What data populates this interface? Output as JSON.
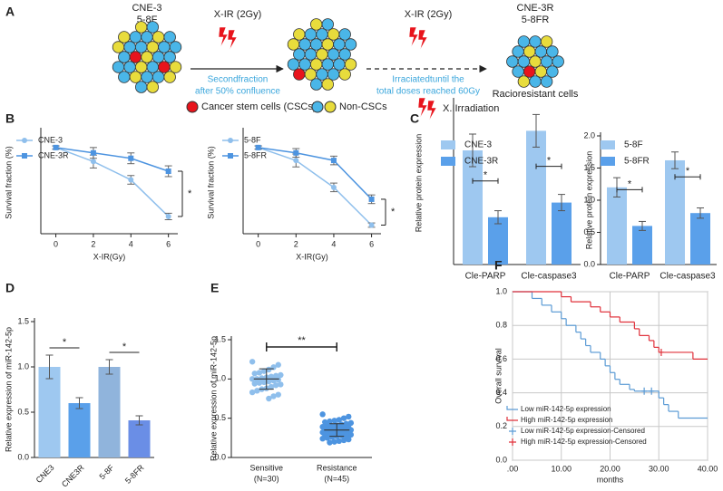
{
  "diagram": {
    "panel": "A",
    "start": [
      "CNE-3",
      "5-8F"
    ],
    "arrows": [
      {
        "label": "X-IR (2Gy)",
        "text": [
          "Secondfraction",
          "after 50% confluence"
        ]
      },
      {
        "label": "X-IR (2Gy)",
        "text": [
          "Irraciatedtuntil the",
          "total doses reached 60Gy"
        ]
      }
    ],
    "end": [
      "CNE-3R",
      "5-8FR"
    ],
    "caption": "Racioresistant cells",
    "legend": [
      "Cancer stem cells (CSCs)",
      "Non-CSCs",
      "X.IIrradiation"
    ]
  },
  "chart_data": [
    {
      "type": "line",
      "panel": "B",
      "ylabel": "Survival fraction (%)",
      "xlabel": "X-IR(Gy)",
      "x": [
        0,
        2,
        4,
        6
      ],
      "xlim": [
        -0.8,
        6.5
      ],
      "ylim": [
        20,
        115
      ],
      "xticks": [
        0,
        2,
        4,
        6
      ],
      "series": [
        {
          "name": "CNE-3",
          "color": "#8fbfec",
          "values": [
            100,
            87,
            70,
            36
          ],
          "errors": [
            1.5,
            6,
            4,
            3
          ]
        },
        {
          "name": "CNE-3R",
          "color": "#4d94e0",
          "values": [
            100,
            95,
            90,
            78
          ],
          "errors": [
            1.5,
            5,
            5,
            5
          ]
        }
      ],
      "annotations": [
        "*"
      ]
    },
    {
      "type": "line",
      "ylabel": "Survival fraction (%)",
      "xlabel": "X-IR(Gy)",
      "x": [
        0,
        2,
        4,
        6
      ],
      "xlim": [
        -0.8,
        6.5
      ],
      "ylim": [
        20,
        115
      ],
      "xticks": [
        0,
        2,
        4,
        6
      ],
      "series": [
        {
          "name": "5-8F",
          "color": "#8fbfec",
          "values": [
            100,
            88,
            63,
            28
          ],
          "errors": [
            1.5,
            6,
            4,
            2
          ]
        },
        {
          "name": "5-8FR",
          "color": "#4d94e0",
          "values": [
            100,
            95,
            88,
            52
          ],
          "errors": [
            1.5,
            4,
            4,
            4
          ]
        }
      ],
      "annotations": [
        "*"
      ]
    },
    {
      "type": "bar",
      "panel": "C",
      "ylabel": "Relative protein expression",
      "categories": [
        "Cle-PARP",
        "Cle-caspase3"
      ],
      "ylim": [
        0,
        1.0
      ],
      "series": [
        {
          "name": "CNE-3",
          "color": "#9ec8f0",
          "values": [
            0.7,
            0.82
          ],
          "errors": [
            0.1,
            0.1
          ]
        },
        {
          "name": "CNE-3R",
          "color": "#5aa0ea",
          "values": [
            0.29,
            0.38
          ],
          "errors": [
            0.04,
            0.05
          ]
        }
      ],
      "annotations": [
        "*",
        "*"
      ]
    },
    {
      "type": "bar",
      "ylabel": "Relative protein expression",
      "categories": [
        "Cle-PARP",
        "Cle-caspase3"
      ],
      "ylim": [
        0,
        2.0
      ],
      "yticks": [
        {
          "value": 0,
          "label": "0.0"
        },
        {
          "value": 0.5,
          "label": "0.5"
        },
        {
          "value": 1,
          "label": "1.0"
        },
        {
          "value": 1.5,
          "label": "1.5"
        },
        {
          "value": 2,
          "label": "2.0"
        }
      ],
      "series": [
        {
          "name": "5-8F",
          "color": "#9ec8f0",
          "values": [
            1.2,
            1.62
          ],
          "errors": [
            0.15,
            0.13
          ]
        },
        {
          "name": "5-8FR",
          "color": "#5aa0ea",
          "values": [
            0.6,
            0.8
          ],
          "errors": [
            0.07,
            0.08
          ]
        }
      ],
      "annotations": [
        "*",
        "*"
      ]
    },
    {
      "type": "column",
      "panel": "D",
      "ylabel": "Relative expression of miR-142-5p",
      "categories": [
        "CNE3",
        "CNE3R",
        "5-8F",
        "5-8FR"
      ],
      "values": [
        1.0,
        0.6,
        1.0,
        0.41
      ],
      "errors": [
        0.13,
        0.06,
        0.08,
        0.05
      ],
      "colors": [
        "#9ec8f0",
        "#5aa0ea",
        "#90b4dc",
        "#6a8ee6"
      ],
      "ylim": [
        0,
        1.5
      ],
      "yticks": [
        {
          "value": 0,
          "label": "0.0"
        },
        {
          "value": 0.5,
          "label": "0.5"
        },
        {
          "value": 1,
          "label": "1.0"
        },
        {
          "value": 1.5,
          "label": "1.5"
        }
      ],
      "annotations": [
        "*",
        "*"
      ]
    },
    {
      "type": "strip",
      "panel": "E",
      "ylabel": "Relative expression of miR-142-5p",
      "categories": [
        "Sensitive",
        "Resistance"
      ],
      "category_notes": [
        "(N=30)",
        "(N=45)"
      ],
      "groups": [
        {
          "color": "#8fbfec",
          "mean": 1.0,
          "sd": 0.13,
          "values": [
            1.22,
            1.18,
            1.15,
            1.12,
            1.1,
            1.08,
            1.07,
            1.05,
            1.04,
            1.03,
            1.02,
            1.01,
            1.0,
            1.0,
            0.99,
            0.98,
            0.97,
            0.96,
            0.95,
            0.94,
            0.93,
            0.92,
            0.9,
            0.88,
            0.87,
            0.85,
            0.83,
            0.8,
            0.78,
            0.75
          ]
        },
        {
          "color": "#4d94e0",
          "mean": 0.35,
          "sd": 0.08,
          "values": [
            0.55,
            0.52,
            0.5,
            0.48,
            0.47,
            0.46,
            0.45,
            0.44,
            0.43,
            0.42,
            0.41,
            0.4,
            0.4,
            0.39,
            0.38,
            0.38,
            0.37,
            0.37,
            0.36,
            0.36,
            0.35,
            0.35,
            0.34,
            0.34,
            0.33,
            0.33,
            0.32,
            0.32,
            0.31,
            0.31,
            0.3,
            0.3,
            0.29,
            0.29,
            0.28,
            0.28,
            0.27,
            0.26,
            0.25,
            0.24,
            0.23,
            0.22,
            0.21,
            0.2,
            0.19
          ]
        }
      ],
      "ylim": [
        0,
        1.5
      ],
      "yticks": [
        {
          "value": 0,
          "label": "0.0"
        },
        {
          "value": 0.5,
          "label": "0.5"
        },
        {
          "value": 1,
          "label": "1.0"
        },
        {
          "value": 1.5,
          "label": "1.5"
        }
      ],
      "annotations": [
        "**"
      ]
    },
    {
      "type": "survival",
      "panel": "F",
      "ylabel": "Overall survival",
      "xlabel": "months",
      "xlim": [
        0,
        40
      ],
      "ylim": [
        0,
        1.0
      ],
      "grid": true,
      "xticks": [
        {
          "value": 0,
          "label": ".00"
        },
        {
          "value": 10,
          "label": "10.00"
        },
        {
          "value": 20,
          "label": "20.00"
        },
        {
          "value": 30,
          "label": "30.00"
        },
        {
          "value": 40,
          "label": "40.00"
        }
      ],
      "yticks": [
        {
          "value": 0,
          "label": "0.0"
        },
        {
          "value": 0.2,
          "label": "0.2"
        },
        {
          "value": 0.4,
          "label": "0.4"
        },
        {
          "value": 0.6,
          "label": "0.6"
        },
        {
          "value": 0.8,
          "label": "0.8"
        },
        {
          "value": 1,
          "label": "1.0"
        }
      ],
      "series": [
        {
          "name": "Low miR-142-5p expression",
          "color": "#5b9bd5",
          "x": [
            0,
            4,
            6,
            8,
            10,
            11,
            13,
            14,
            15,
            16,
            18,
            19,
            20,
            21,
            22,
            24,
            25,
            30,
            31,
            32,
            34,
            40
          ],
          "values": [
            1.0,
            0.96,
            0.92,
            0.88,
            0.84,
            0.8,
            0.76,
            0.72,
            0.68,
            0.64,
            0.6,
            0.56,
            0.52,
            0.48,
            0.45,
            0.42,
            0.41,
            0.37,
            0.33,
            0.29,
            0.25,
            0.25
          ]
        },
        {
          "name": "High miR-142-5p expression",
          "color": "#e0303a",
          "x": [
            0,
            10,
            12,
            16,
            18,
            20,
            22,
            25,
            26,
            28,
            29,
            30,
            37,
            40
          ],
          "values": [
            1.0,
            0.97,
            0.94,
            0.91,
            0.88,
            0.85,
            0.82,
            0.78,
            0.74,
            0.71,
            0.67,
            0.64,
            0.6,
            0.6
          ]
        },
        {
          "name": "Low miR-142-5p expression-Censored",
          "color": "#5b9bd5",
          "censored": true,
          "x": [
            27,
            28.5
          ],
          "values": [
            0.41,
            0.41
          ]
        },
        {
          "name": "High miR-142-5p expression-Censored",
          "color": "#e0303a",
          "censored": true,
          "x": [
            30.5
          ],
          "values": [
            0.64
          ]
        }
      ]
    }
  ]
}
